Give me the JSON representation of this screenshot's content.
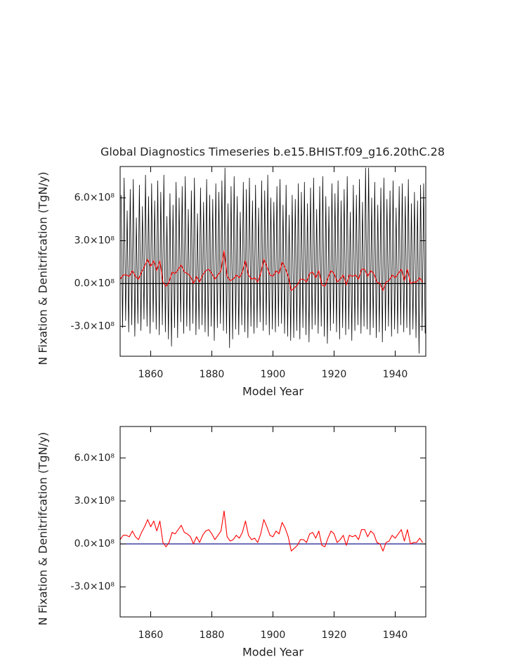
{
  "chart_data": [
    {
      "type": "line",
      "title": "Global Diagnostics Timeseries b.e15.BHIST.f09_g16.20thC.28",
      "ylabel": "N Fixation & Denitrifcation (TgN/y)",
      "xlabel": "Model Year",
      "xlim": [
        1850,
        1950
      ],
      "xticks": [
        1860,
        1880,
        1900,
        1920,
        1940
      ],
      "ylim": [
        -510000000.0,
        820000000.0
      ],
      "yticks": [
        {
          "value": -300000000.0,
          "label": "-3.0×10⁸"
        },
        {
          "value": 0,
          "label": "0.0×10⁸"
        },
        {
          "value": 300000000.0,
          "label": "3.0×10⁸"
        },
        {
          "value": 600000000.0,
          "label": "6.0×10⁸"
        }
      ],
      "zero_line_color": "#000000",
      "series": [
        {
          "color": "#000000",
          "x": [
            1850.3,
            1850.8,
            1851.3,
            1851.8,
            1852.3,
            1852.8,
            1853.3,
            1853.8,
            1854.3,
            1854.8,
            1855.3,
            1855.8,
            1856.3,
            1856.8,
            1857.3,
            1857.8,
            1858.3,
            1858.8,
            1859.3,
            1859.8,
            1860.3,
            1860.8,
            1861.3,
            1861.8,
            1862.3,
            1862.8,
            1863.3,
            1863.8,
            1864.3,
            1864.8,
            1865.3,
            1865.8,
            1866.3,
            1866.8,
            1867.3,
            1867.8,
            1868.3,
            1868.8,
            1869.3,
            1869.8,
            1870.3,
            1870.8,
            1871.3,
            1871.8,
            1872.3,
            1872.8,
            1873.3,
            1873.8,
            1874.3,
            1874.8,
            1875.3,
            1875.8,
            1876.3,
            1876.8,
            1877.3,
            1877.8,
            1878.3,
            1878.8,
            1879.3,
            1879.8,
            1880.3,
            1880.8,
            1881.3,
            1881.8,
            1882.3,
            1882.8,
            1883.3,
            1883.8,
            1884.3,
            1884.8,
            1885.3,
            1885.8,
            1886.3,
            1886.8,
            1887.3,
            1887.8,
            1888.3,
            1888.8,
            1889.3,
            1889.8,
            1890.3,
            1890.8,
            1891.3,
            1891.8,
            1892.3,
            1892.8,
            1893.3,
            1893.8,
            1894.3,
            1894.8,
            1895.3,
            1895.8,
            1896.3,
            1896.8,
            1897.3,
            1897.8,
            1898.3,
            1898.8,
            1899.3,
            1899.8,
            1900.3,
            1900.8,
            1901.3,
            1901.8,
            1902.3,
            1902.8,
            1903.3,
            1903.8,
            1904.3,
            1904.8,
            1905.3,
            1905.8,
            1906.3,
            1906.8,
            1907.3,
            1907.8,
            1908.3,
            1908.8,
            1909.3,
            1909.8,
            1910.3,
            1910.8,
            1911.3,
            1911.8,
            1912.3,
            1912.8,
            1913.3,
            1913.8,
            1914.3,
            1914.8,
            1915.3,
            1915.8,
            1916.3,
            1916.8,
            1917.3,
            1917.8,
            1918.3,
            1918.8,
            1919.3,
            1919.8,
            1920.3,
            1920.8,
            1921.3,
            1921.8,
            1922.3,
            1922.8,
            1923.3,
            1923.8,
            1924.3,
            1924.8,
            1925.3,
            1925.8,
            1926.3,
            1926.8,
            1927.3,
            1927.8,
            1928.3,
            1928.8,
            1929.3,
            1929.8,
            1930.3,
            1930.8,
            1931.3,
            1931.8,
            1932.3,
            1932.8,
            1933.3,
            1933.8,
            1934.3,
            1934.8,
            1935.3,
            1935.8,
            1936.3,
            1936.8,
            1937.3,
            1937.8,
            1938.3,
            1938.8,
            1939.3,
            1939.8,
            1940.3,
            1940.8,
            1941.3,
            1941.8,
            1942.3,
            1942.8,
            1943.3,
            1943.8,
            1944.3,
            1944.8,
            1945.3,
            1945.8,
            1946.3,
            1946.8,
            1947.3,
            1947.8,
            1948.3,
            1948.8,
            1949.3,
            1949.8
          ],
          "values": [
            620000000.0,
            -310000000.0,
            740000000.0,
            -260000000.0,
            510000000.0,
            -340000000.0,
            660000000.0,
            -290000000.0,
            730000000.0,
            -370000000.0,
            460000000.0,
            -280000000.0,
            690000000.0,
            -330000000.0,
            540000000.0,
            -250000000.0,
            760000000.0,
            -300000000.0,
            610000000.0,
            -350000000.0,
            700000000.0,
            -270000000.0,
            580000000.0,
            -320000000.0,
            720000000.0,
            -360000000.0,
            640000000.0,
            -290000000.0,
            760000000.0,
            -340000000.0,
            470000000.0,
            -390000000.0,
            630000000.0,
            -440000000.0,
            550000000.0,
            -310000000.0,
            710000000.0,
            -380000000.0,
            600000000.0,
            -270000000.0,
            680000000.0,
            -350000000.0,
            750000000.0,
            -300000000.0,
            520000000.0,
            -330000000.0,
            650000000.0,
            -280000000.0,
            740000000.0,
            -360000000.0,
            490000000.0,
            -320000000.0,
            670000000.0,
            -290000000.0,
            570000000.0,
            -340000000.0,
            730000000.0,
            -370000000.0,
            620000000.0,
            -300000000.0,
            590000000.0,
            -400000000.0,
            700000000.0,
            -310000000.0,
            640000000.0,
            -280000000.0,
            720000000.0,
            -330000000.0,
            810000000.0,
            -350000000.0,
            560000000.0,
            -450000000.0,
            680000000.0,
            -390000000.0,
            750000000.0,
            -320000000.0,
            610000000.0,
            -360000000.0,
            500000000.0,
            -290000000.0,
            710000000.0,
            -340000000.0,
            660000000.0,
            -380000000.0,
            740000000.0,
            -300000000.0,
            580000000.0,
            -350000000.0,
            690000000.0,
            -310000000.0,
            530000000.0,
            -270000000.0,
            720000000.0,
            -330000000.0,
            650000000.0,
            -290000000.0,
            760000000.0,
            -360000000.0,
            600000000.0,
            -320000000.0,
            570000000.0,
            -340000000.0,
            680000000.0,
            -300000000.0,
            730000000.0,
            -280000000.0,
            550000000.0,
            -350000000.0,
            690000000.0,
            -370000000.0,
            480000000.0,
            -400000000.0,
            620000000.0,
            -380000000.0,
            590000000.0,
            -330000000.0,
            700000000.0,
            -390000000.0,
            640000000.0,
            -310000000.0,
            710000000.0,
            -360000000.0,
            560000000.0,
            -410000000.0,
            670000000.0,
            -320000000.0,
            740000000.0,
            -290000000.0,
            520000000.0,
            -350000000.0,
            680000000.0,
            -300000000.0,
            750000000.0,
            -370000000.0,
            610000000.0,
            -420000000.0,
            540000000.0,
            -330000000.0,
            700000000.0,
            -280000000.0,
            630000000.0,
            -340000000.0,
            720000000.0,
            -390000000.0,
            580000000.0,
            -310000000.0,
            660000000.0,
            -360000000.0,
            750000000.0,
            -320000000.0,
            500000000.0,
            -400000000.0,
            690000000.0,
            -330000000.0,
            620000000.0,
            -290000000.0,
            730000000.0,
            -350000000.0,
            570000000.0,
            -300000000.0,
            810000000.0,
            -320000000.0,
            810000000.0,
            -360000000.0,
            600000000.0,
            -310000000.0,
            710000000.0,
            -380000000.0,
            550000000.0,
            -340000000.0,
            670000000.0,
            -410000000.0,
            740000000.0,
            -330000000.0,
            590000000.0,
            -300000000.0,
            650000000.0,
            -370000000.0,
            720000000.0,
            -320000000.0,
            530000000.0,
            -350000000.0,
            680000000.0,
            -290000000.0,
            700000000.0,
            -340000000.0,
            610000000.0,
            -310000000.0,
            730000000.0,
            -360000000.0,
            560000000.0,
            -320000000.0,
            640000000.0,
            -380000000.0,
            580000000.0,
            -490000000.0,
            690000000.0,
            -330000000.0,
            700000000.0,
            -350000000.0
          ]
        },
        {
          "color": "#ff0000",
          "x": [
            1850,
            1851,
            1852,
            1853,
            1854,
            1855,
            1856,
            1857,
            1858,
            1859,
            1860,
            1861,
            1862,
            1863,
            1864,
            1865,
            1866,
            1867,
            1868,
            1869,
            1870,
            1871,
            1872,
            1873,
            1874,
            1875,
            1876,
            1877,
            1878,
            1879,
            1880,
            1881,
            1882,
            1883,
            1884,
            1885,
            1886,
            1887,
            1888,
            1889,
            1890,
            1891,
            1892,
            1893,
            1894,
            1895,
            1896,
            1897,
            1898,
            1899,
            1900,
            1901,
            1902,
            1903,
            1904,
            1905,
            1906,
            1907,
            1908,
            1909,
            1910,
            1911,
            1912,
            1913,
            1914,
            1915,
            1916,
            1917,
            1918,
            1919,
            1920,
            1921,
            1922,
            1923,
            1924,
            1925,
            1926,
            1927,
            1928,
            1929,
            1930,
            1931,
            1932,
            1933,
            1934,
            1935,
            1936,
            1937,
            1938,
            1939,
            1940,
            1941,
            1942,
            1943,
            1944,
            1945,
            1946,
            1947,
            1948,
            1949
          ],
          "values": [
            30000000.0,
            60000000.0,
            60000000.0,
            50000000.0,
            90000000.0,
            50000000.0,
            30000000.0,
            80000000.0,
            120000000.0,
            170000000.0,
            120000000.0,
            160000000.0,
            90000000.0,
            160000000.0,
            10000000.0,
            -20000000.0,
            10000000.0,
            80000000.0,
            70000000.0,
            100000000.0,
            130000000.0,
            80000000.0,
            70000000.0,
            50000000.0,
            0,
            50000000.0,
            10000000.0,
            60000000.0,
            90000000.0,
            100000000.0,
            70000000.0,
            30000000.0,
            60000000.0,
            90000000.0,
            230000000.0,
            50000000.0,
            20000000.0,
            30000000.0,
            60000000.0,
            40000000.0,
            80000000.0,
            160000000.0,
            60000000.0,
            30000000.0,
            40000000.0,
            10000000.0,
            70000000.0,
            170000000.0,
            120000000.0,
            60000000.0,
            50000000.0,
            90000000.0,
            70000000.0,
            150000000.0,
            110000000.0,
            50000000.0,
            -50000000.0,
            -30000000.0,
            -10000000.0,
            30000000.0,
            30000000.0,
            10000000.0,
            70000000.0,
            80000000.0,
            40000000.0,
            90000000.0,
            -10000000.0,
            -20000000.0,
            40000000.0,
            90000000.0,
            70000000.0,
            10000000.0,
            30000000.0,
            60000000.0,
            -10000000.0,
            60000000.0,
            50000000.0,
            60000000.0,
            30000000.0,
            100000000.0,
            100000000.0,
            50000000.0,
            90000000.0,
            70000000.0,
            10000000.0,
            0,
            -50000000.0,
            10000000.0,
            20000000.0,
            60000000.0,
            40000000.0,
            70000000.0,
            100000000.0,
            20000000.0,
            100000000.0,
            0,
            10000000.0,
            10000000.0,
            40000000.0,
            10000000.0
          ]
        }
      ]
    },
    {
      "type": "line",
      "ylabel": "N Fixation & Denitrifcation (TgN/y)",
      "xlabel": "Model Year",
      "xlim": [
        1850,
        1950
      ],
      "xticks": [
        1860,
        1880,
        1900,
        1920,
        1940
      ],
      "ylim": [
        -510000000.0,
        820000000.0
      ],
      "yticks": [
        {
          "value": -300000000.0,
          "label": "-3.0×10⁸"
        },
        {
          "value": 0,
          "label": "0.0×10⁸"
        },
        {
          "value": 300000000.0,
          "label": "3.0×10⁸"
        },
        {
          "value": 600000000.0,
          "label": "6.0×10⁸"
        }
      ],
      "zero_line_color": "#000080",
      "series": [
        {
          "color": "#ff0000",
          "x": [
            1850,
            1851,
            1852,
            1853,
            1854,
            1855,
            1856,
            1857,
            1858,
            1859,
            1860,
            1861,
            1862,
            1863,
            1864,
            1865,
            1866,
            1867,
            1868,
            1869,
            1870,
            1871,
            1872,
            1873,
            1874,
            1875,
            1876,
            1877,
            1878,
            1879,
            1880,
            1881,
            1882,
            1883,
            1884,
            1885,
            1886,
            1887,
            1888,
            1889,
            1890,
            1891,
            1892,
            1893,
            1894,
            1895,
            1896,
            1897,
            1898,
            1899,
            1900,
            1901,
            1902,
            1903,
            1904,
            1905,
            1906,
            1907,
            1908,
            1909,
            1910,
            1911,
            1912,
            1913,
            1914,
            1915,
            1916,
            1917,
            1918,
            1919,
            1920,
            1921,
            1922,
            1923,
            1924,
            1925,
            1926,
            1927,
            1928,
            1929,
            1930,
            1931,
            1932,
            1933,
            1934,
            1935,
            1936,
            1937,
            1938,
            1939,
            1940,
            1941,
            1942,
            1943,
            1944,
            1945,
            1946,
            1947,
            1948,
            1949
          ],
          "values": [
            30000000.0,
            60000000.0,
            60000000.0,
            50000000.0,
            90000000.0,
            50000000.0,
            30000000.0,
            80000000.0,
            120000000.0,
            170000000.0,
            120000000.0,
            160000000.0,
            90000000.0,
            160000000.0,
            10000000.0,
            -20000000.0,
            10000000.0,
            80000000.0,
            70000000.0,
            100000000.0,
            130000000.0,
            80000000.0,
            70000000.0,
            50000000.0,
            0,
            50000000.0,
            10000000.0,
            60000000.0,
            90000000.0,
            100000000.0,
            70000000.0,
            30000000.0,
            60000000.0,
            90000000.0,
            230000000.0,
            50000000.0,
            20000000.0,
            30000000.0,
            60000000.0,
            40000000.0,
            80000000.0,
            160000000.0,
            60000000.0,
            30000000.0,
            40000000.0,
            10000000.0,
            70000000.0,
            170000000.0,
            120000000.0,
            60000000.0,
            50000000.0,
            90000000.0,
            70000000.0,
            150000000.0,
            110000000.0,
            50000000.0,
            -50000000.0,
            -30000000.0,
            -10000000.0,
            30000000.0,
            30000000.0,
            10000000.0,
            70000000.0,
            80000000.0,
            40000000.0,
            90000000.0,
            -10000000.0,
            -20000000.0,
            40000000.0,
            90000000.0,
            70000000.0,
            10000000.0,
            30000000.0,
            60000000.0,
            -10000000.0,
            60000000.0,
            50000000.0,
            60000000.0,
            30000000.0,
            100000000.0,
            100000000.0,
            50000000.0,
            90000000.0,
            70000000.0,
            10000000.0,
            0,
            -50000000.0,
            10000000.0,
            20000000.0,
            60000000.0,
            40000000.0,
            70000000.0,
            100000000.0,
            20000000.0,
            100000000.0,
            0,
            10000000.0,
            10000000.0,
            40000000.0,
            10000000.0
          ]
        }
      ]
    }
  ]
}
